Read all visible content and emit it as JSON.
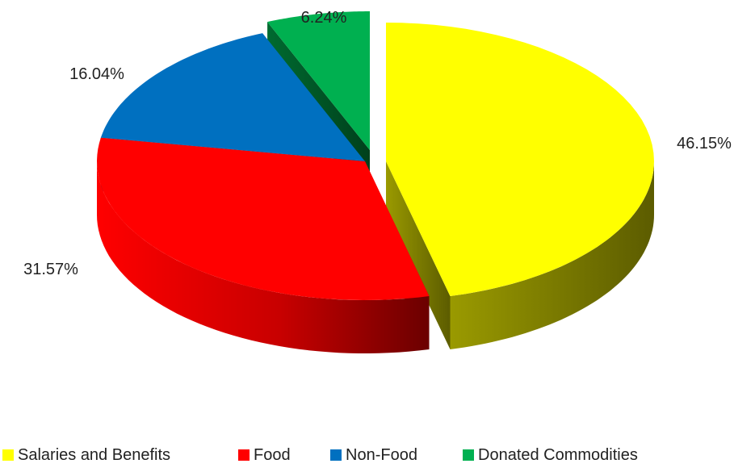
{
  "chart_data": {
    "type": "pie",
    "style": "3d-exploded",
    "categories": [
      "Salaries and Benefits",
      "Food",
      "Non-Food",
      "Donated Commodities"
    ],
    "values": [
      46.15,
      31.57,
      16.04,
      6.24
    ],
    "data_labels": [
      "46.15%",
      "31.57%",
      "16.04%",
      "6.24%"
    ],
    "colors": [
      "#FFFF00",
      "#FF0000",
      "#0070C0",
      "#00B050"
    ],
    "legend_position": "bottom"
  }
}
